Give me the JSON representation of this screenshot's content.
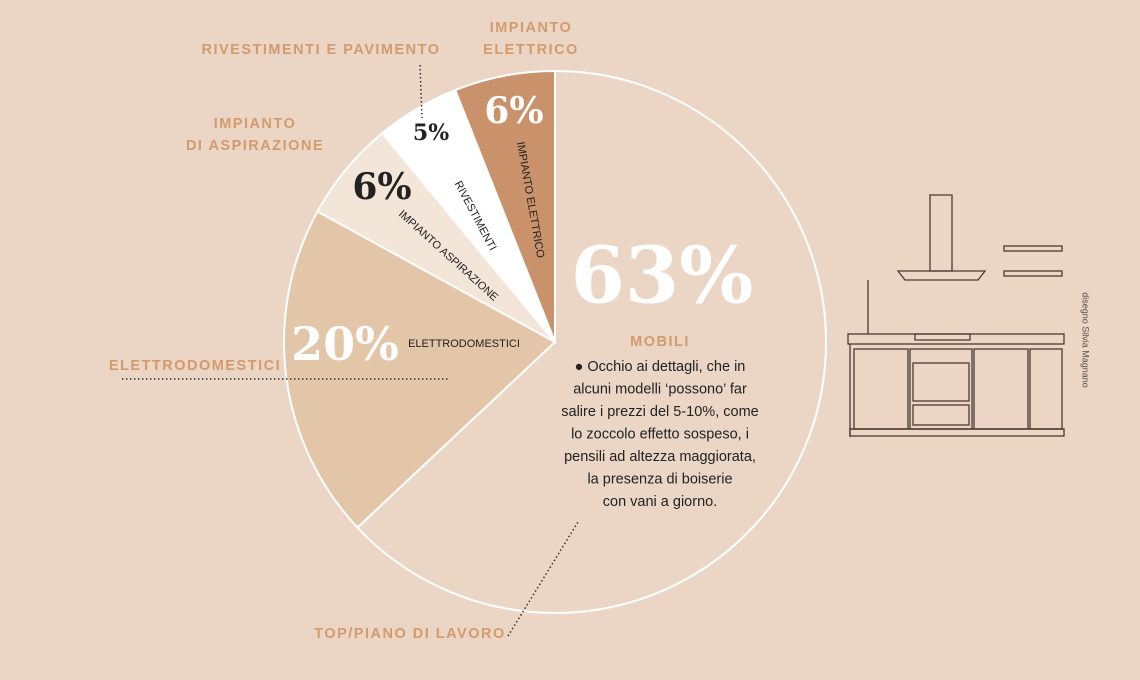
{
  "chart_data": {
    "type": "pie",
    "categories": [
      "MOBILI",
      "ELETTRODOMESTICI",
      "IMPIANTO ASPIRAZIONE",
      "RIVESTIMENTI",
      "IMPIANTO ELETTRICO"
    ],
    "values": [
      63,
      20,
      6,
      5,
      6
    ],
    "value_labels": [
      "63%",
      "20%",
      "6%",
      "5%",
      "6%"
    ],
    "colors": [
      "#ebd6c6",
      "#e3c5a8",
      "#f3e5d8",
      "#ffffff",
      "#c9926a"
    ],
    "annotations": [
      {
        "lines": [
          "RIVESTIMENTI E PAVIMENTO"
        ]
      },
      {
        "lines": [
          "IMPIANTO",
          "ELETTRICO"
        ]
      },
      {
        "lines": [
          "IMPIANTO",
          "DI ASPIRAZIONE"
        ]
      },
      {
        "lines": [
          "ELETTRODOMESTICI"
        ]
      },
      {
        "lines": [
          "TOP/PIANO DI LAVORO"
        ]
      }
    ],
    "note": [
      "● Occhio ai dettagli, che in",
      "alcuni modelli ‘possono’ far",
      "salire i prezzi del 5-10%, come",
      "lo zoccolo effetto sospeso, i",
      "pensili ad altezza maggiorata,",
      "la presenza di boiserie",
      "con vani a giorno."
    ]
  },
  "credit": "disegno Silvia Magnano"
}
